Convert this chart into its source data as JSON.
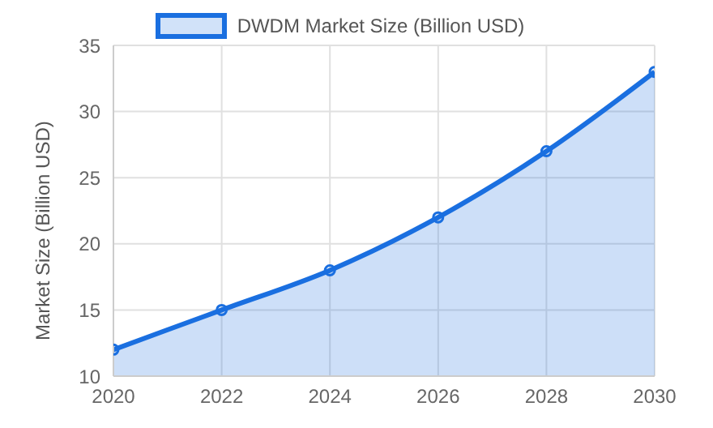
{
  "chart_data": {
    "type": "area",
    "x": [
      2020,
      2022,
      2024,
      2026,
      2028,
      2030
    ],
    "series": [
      {
        "name": "DWDM Market Size (Billion USD)",
        "color": "#1a6fe0",
        "values": [
          12,
          15,
          18,
          22,
          27,
          33
        ]
      }
    ],
    "xlim": [
      2020,
      2030
    ],
    "xticks": [
      2020,
      2022,
      2024,
      2026,
      2028,
      2030
    ],
    "ylim": [
      10,
      35
    ],
    "yticks": [
      10,
      15,
      20,
      25,
      30,
      35
    ],
    "ylabel": "Market Size (Billion USD)",
    "grid": true,
    "legend": "top",
    "marker": "circle",
    "line_style": "solid"
  }
}
